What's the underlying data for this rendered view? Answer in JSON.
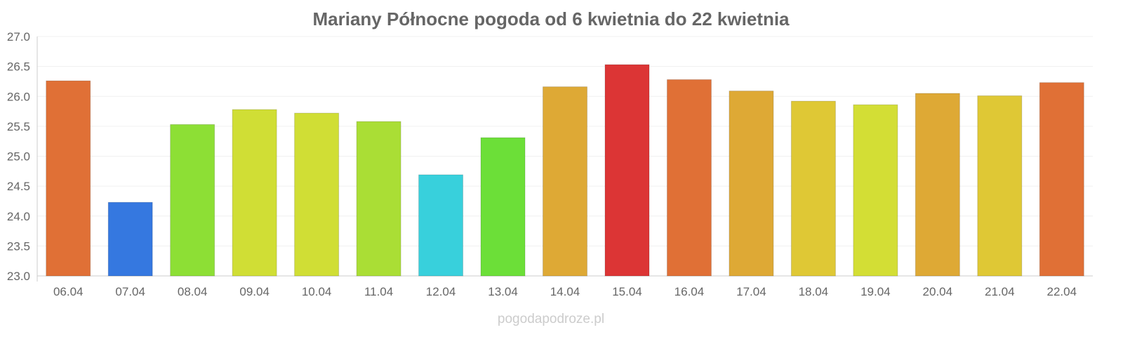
{
  "chart_data": {
    "type": "bar",
    "title": "Mariany Północne pogoda od 6 kwietnia do 22 kwietnia",
    "xlabel": "",
    "ylabel": "",
    "ylim": [
      23.0,
      27.0
    ],
    "yticks": [
      "23.0",
      "23.5",
      "24.0",
      "24.5",
      "25.0",
      "25.5",
      "26.0",
      "26.5",
      "27.0"
    ],
    "grid": true,
    "categories": [
      "06.04",
      "07.04",
      "08.04",
      "09.04",
      "10.04",
      "11.04",
      "12.04",
      "13.04",
      "14.04",
      "15.04",
      "16.04",
      "17.04",
      "18.04",
      "19.04",
      "20.04",
      "21.04",
      "22.04"
    ],
    "values": [
      26.26,
      24.23,
      25.53,
      25.78,
      25.72,
      25.58,
      24.69,
      25.31,
      26.16,
      26.53,
      26.28,
      26.09,
      25.92,
      25.86,
      26.05,
      26.01,
      26.23
    ],
    "colors": [
      "#e07036",
      "#3578e0",
      "#8ddf35",
      "#d0de35",
      "#d0de35",
      "#aade35",
      "#38d0dc",
      "#6cdf38",
      "#dea935",
      "#dc3535",
      "#e07036",
      "#dea935",
      "#dfc835",
      "#d3de35",
      "#dea935",
      "#dfc835",
      "#e07036"
    ]
  },
  "credit": "pogodapodroze.pl"
}
